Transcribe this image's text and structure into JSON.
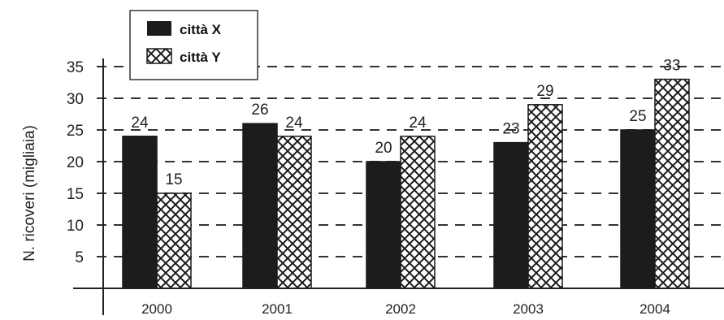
{
  "chart_data": {
    "type": "bar",
    "categories": [
      "2000",
      "2001",
      "2002",
      "2003",
      "2004"
    ],
    "series": [
      {
        "name": "città X",
        "values": [
          24,
          26,
          20,
          23,
          25
        ],
        "color": "#1c1c1c",
        "pattern": "solid"
      },
      {
        "name": "città Y",
        "values": [
          15,
          24,
          24,
          29,
          33
        ],
        "color": "#ffffff",
        "pattern": "crosshatch"
      }
    ],
    "ylabel": "N. ricoveri (migliaia)",
    "xlabel": "",
    "title": "",
    "ylim": [
      0,
      35
    ],
    "yticks": [
      5,
      10,
      15,
      20,
      25,
      30,
      35
    ],
    "grid": "dashed horizontal",
    "legend": "top-left"
  }
}
